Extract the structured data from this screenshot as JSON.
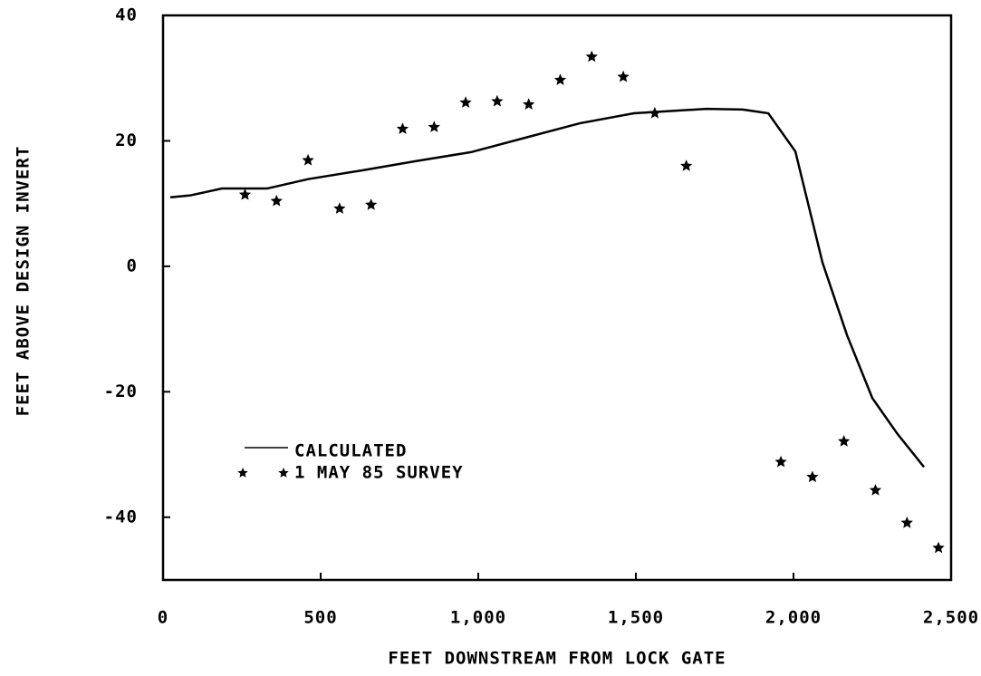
{
  "chart_data": {
    "type": "line_scatter",
    "xlabel": "FEET DOWNSTREAM FROM LOCK GATE",
    "ylabel": "FEET ABOVE DESIGN INVERT",
    "xlim": [
      0,
      2500
    ],
    "ylim": [
      -50,
      40
    ],
    "xticks": [
      0,
      500,
      {
        "value": 1000,
        "label": "1,000"
      },
      {
        "value": 1500,
        "label": "1,500"
      },
      {
        "value": 2000,
        "label": "2,000"
      },
      {
        "value": 2500,
        "label": "2,500"
      }
    ],
    "yticks": [
      40,
      20,
      0,
      -20,
      -40
    ],
    "legend": "lower left",
    "series": [
      {
        "name": "CALCULATED",
        "kind": "line",
        "color": "#000000",
        "x": [
          23,
          86,
          187,
          330,
          460,
          632,
          805,
          977,
          1149,
          1322,
          1494,
          1724,
          1839,
          1920,
          2006,
          2092,
          2170,
          2250,
          2328,
          2414
        ],
        "values": [
          11.0,
          11.3,
          12.4,
          12.4,
          13.9,
          15.3,
          16.8,
          18.2,
          20.5,
          22.8,
          24.4,
          25.1,
          25.0,
          24.4,
          18.3,
          0.6,
          -11,
          -21,
          -26.6,
          -32
        ]
      },
      {
        "name": "1 MAY 85 SURVEY",
        "kind": "scatter",
        "color": "#000000",
        "x": [
          260,
          360,
          460,
          560,
          660,
          760,
          860,
          960,
          1060,
          1160,
          1260,
          1360,
          1460,
          1560,
          1660,
          1960,
          2060,
          2160,
          2260,
          2360,
          2460
        ],
        "values": [
          11.4,
          10.4,
          16.9,
          9.2,
          9.8,
          21.9,
          22.2,
          26.1,
          26.3,
          25.8,
          29.7,
          33.4,
          30.2,
          24.4,
          16.0,
          -31.2,
          -33.6,
          -27.9,
          -35.7,
          -40.9,
          -44.9
        ]
      }
    ]
  }
}
